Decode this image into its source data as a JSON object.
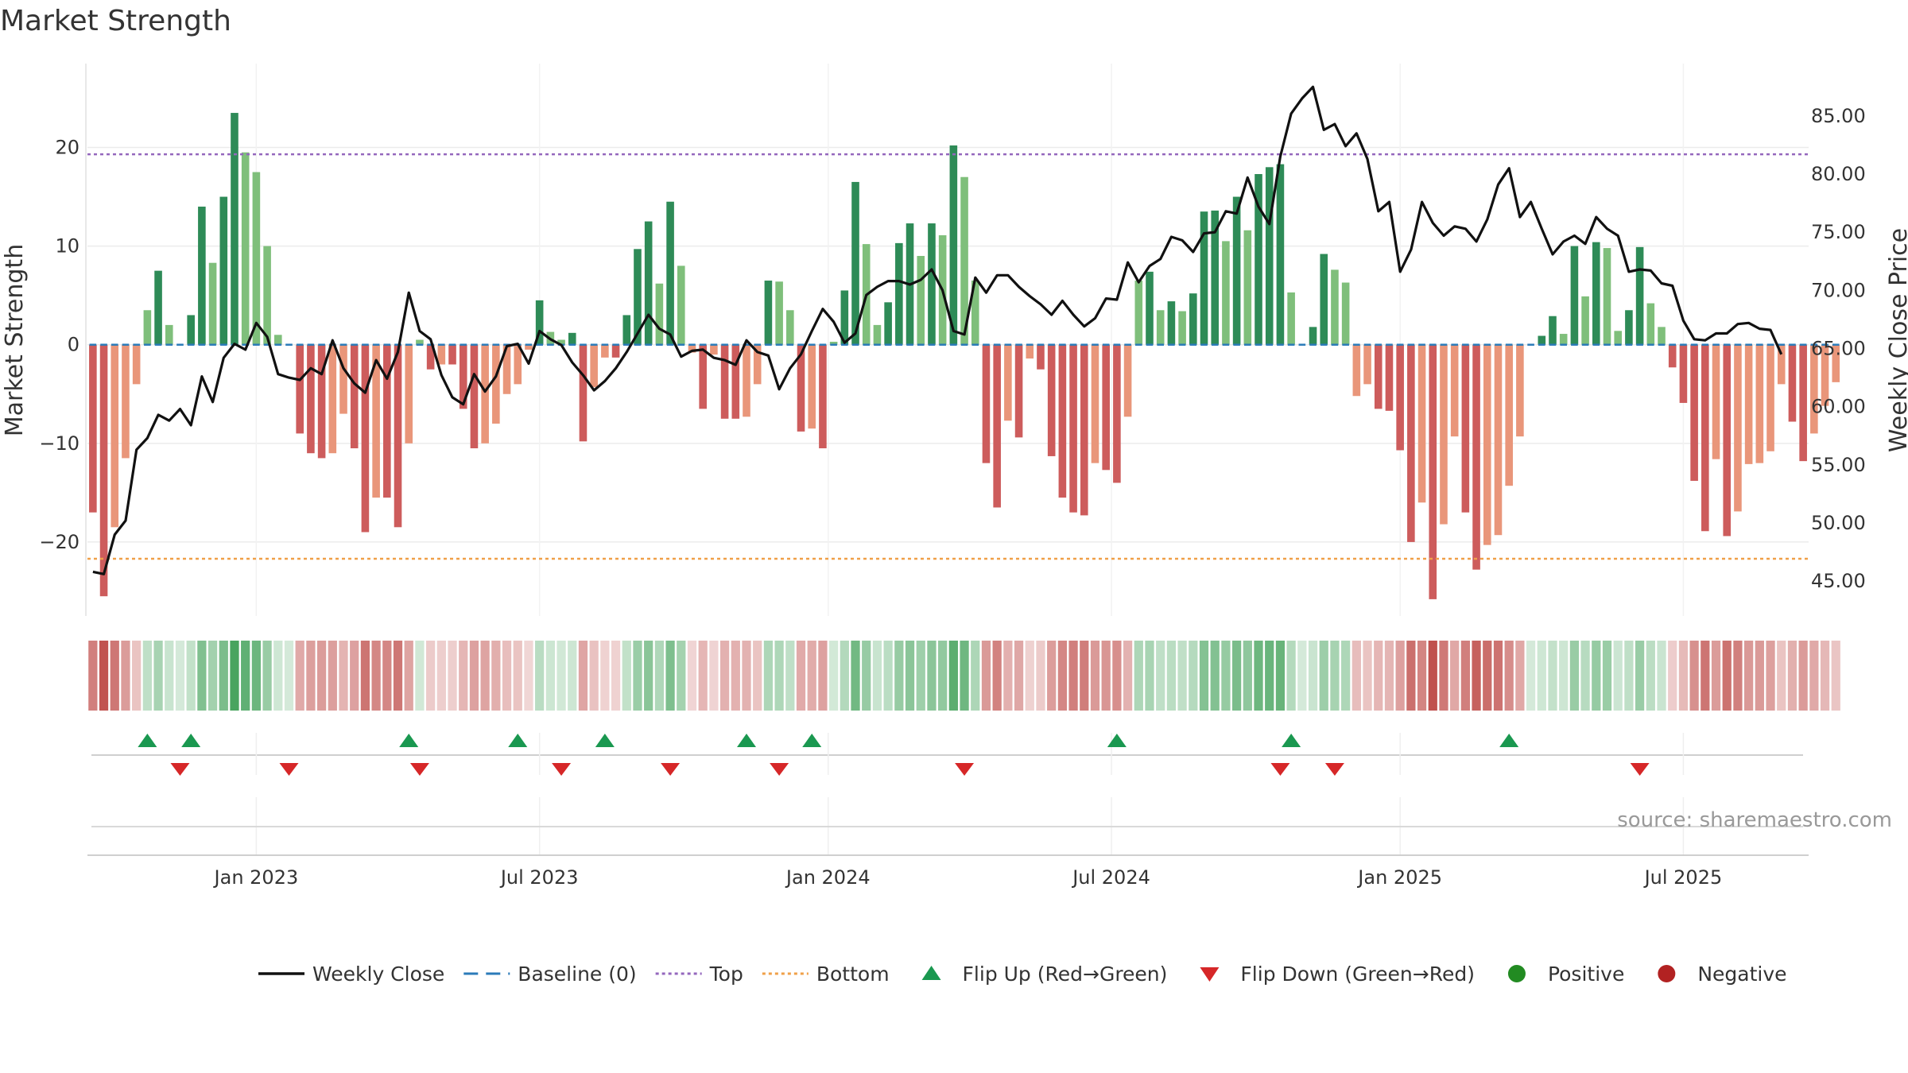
{
  "chart_data": {
    "type": "bar",
    "title": "Market Strength",
    "ylabel_left": "Market Strength",
    "ylabel_right": "Weekly Close Price",
    "y_left_ticks": [
      "20",
      "10",
      "0",
      "−10",
      "−20"
    ],
    "y_left_tick_values": [
      20,
      10,
      0,
      -10,
      -20
    ],
    "y_left_range": [
      -27.5,
      28.5
    ],
    "y_right_ticks": [
      "85.00",
      "80.00",
      "75.00",
      "70.00",
      "65.00",
      "60.00",
      "55.00",
      "50.00",
      "45.00"
    ],
    "y_right_tick_values": [
      85,
      80,
      75,
      70,
      65,
      60,
      55,
      50,
      45
    ],
    "y_right_range": [
      42.0,
      89.5
    ],
    "x_ticks": [
      "Jan 2023",
      "Jul 2023",
      "Jan 2024",
      "Jul 2024",
      "Jan 2025",
      "Jul 2025"
    ],
    "x_tick_weeks": [
      15,
      41,
      67.5,
      93.5,
      120,
      146
    ],
    "x_range": [
      -0.5,
      157.5
    ],
    "top_line": 19.3,
    "bottom_line": -21.7,
    "baseline": 0,
    "strength": [
      -17,
      -25.5,
      -18.5,
      -11.5,
      -4,
      3.5,
      7.5,
      2,
      0,
      3,
      14,
      8.3,
      15,
      23.5,
      19.5,
      17.5,
      10,
      1,
      0,
      -9,
      -11,
      -11.5,
      -11,
      -7,
      -10.5,
      -19,
      -15.5,
      -15.5,
      -18.5,
      -10,
      0.5,
      -2.5,
      -2,
      -2,
      -6.5,
      -10.5,
      -10,
      -8,
      -5,
      -4,
      -0.5,
      4.5,
      1.3,
      0.5,
      1.2,
      -9.8,
      -4.3,
      -1.3,
      -1.3,
      3,
      9.7,
      12.5,
      6.2,
      14.5,
      8,
      -0.8,
      -6.5,
      -1,
      -7.5,
      -7.5,
      -7.3,
      -4,
      6.5,
      6.4,
      3.5,
      -8.8,
      -8.5,
      -10.5,
      0.3,
      5.5,
      16.5,
      10.2,
      2,
      4.3,
      10.3,
      12.3,
      9,
      12.3,
      11.1,
      20.2,
      17,
      6.5,
      -12,
      -16.5,
      -7.7,
      -9.4,
      -1.4,
      -2.5,
      -11.3,
      -15.5,
      -17,
      -17.3,
      -12,
      -12.7,
      -14,
      -7.3,
      6.5,
      7.4,
      3.5,
      4.4,
      3.4,
      5.2,
      13.5,
      13.6,
      10.5,
      15,
      11.6,
      17.3,
      18,
      18.3,
      5.3,
      0,
      1.8,
      9.2,
      7.6,
      6.3,
      -5.2,
      -4,
      -6.5,
      -6.7,
      -10.7,
      -20,
      -16,
      -25.8,
      -18.2,
      -9.3,
      -17,
      -22.8,
      -20.3,
      -19.3,
      -14.3,
      -9.3,
      0,
      0.9,
      2.9,
      1.1,
      10,
      4.9,
      10.4,
      9.8,
      1.4,
      3.5,
      9.9,
      4.2,
      1.8,
      -2.3,
      -5.9,
      -13.8,
      -18.9,
      -11.6,
      -19.4,
      -16.9,
      -12.1,
      -12,
      -10.8,
      -4,
      -7.8,
      -11.8,
      -9,
      -6.2,
      -3.8
    ],
    "weekly_close": [
      45.8,
      45.6,
      49,
      50.2,
      56.3,
      57.3,
      59.3,
      58.8,
      59.8,
      58.4,
      62.6,
      60.4,
      64.2,
      65.4,
      64.9,
      67.2,
      66,
      62.8,
      62.5,
      62.3,
      63.3,
      62.8,
      65.7,
      63.3,
      62,
      61.2,
      64,
      62.4,
      64.7,
      69.8,
      66.5,
      65.8,
      62.7,
      60.8,
      60.2,
      62.8,
      61.3,
      62.6,
      65.2,
      65.4,
      63.7,
      66.5,
      65.8,
      65.3,
      63.8,
      62.7,
      61.4,
      62.2,
      63.3,
      64.7,
      66.3,
      67.9,
      66.7,
      66.2,
      64.3,
      64.8,
      64.9,
      64.2,
      64,
      63.6,
      65.7,
      64.7,
      64.4,
      61.5,
      63.3,
      64.5,
      66.5,
      68.4,
      67.3,
      65.5,
      66.3,
      69.6,
      70.3,
      70.8,
      70.8,
      70.5,
      70.9,
      71.8,
      70,
      66.5,
      66.2,
      71.1,
      69.8,
      71.3,
      71.3,
      70.3,
      69.5,
      68.8,
      67.9,
      69.1,
      67.9,
      66.9,
      67.6,
      69.3,
      69.2,
      72.4,
      70.7,
      72.1,
      72.7,
      74.6,
      74.3,
      73.3,
      74.9,
      75,
      76.8,
      76.6,
      79.7,
      77.2,
      75.7,
      81.5,
      85.2,
      86.5,
      87.5,
      83.8,
      84.3,
      82.4,
      83.5,
      81.3,
      76.8,
      77.6,
      71.6,
      73.5,
      77.6,
      75.8,
      74.7,
      75.5,
      75.3,
      74.2,
      76.1,
      79.1,
      80.5,
      76.3,
      77.6,
      75.3,
      73.1,
      74.2,
      74.7,
      74,
      76.3,
      75.3,
      74.7,
      71.6,
      71.8,
      71.7,
      70.6,
      70.4,
      67.4,
      65.8,
      65.7,
      66.3,
      66.3,
      67.1,
      67.2,
      66.7,
      66.6,
      64.5
    ],
    "flip_up_weeks": [
      5,
      9,
      29,
      39,
      47,
      60,
      66,
      94,
      110,
      130
    ],
    "flip_down_weeks": [
      8,
      18,
      30,
      43,
      53,
      63,
      80,
      109,
      114,
      142
    ],
    "legend": [
      {
        "label": "Weekly Close",
        "kind": "line",
        "color": "#111111"
      },
      {
        "label": "Baseline (0)",
        "kind": "dash",
        "color": "#2b7bb9"
      },
      {
        "label": "Top",
        "kind": "dot",
        "color": "#9467bd"
      },
      {
        "label": "Bottom",
        "kind": "dot",
        "color": "#f0a048"
      },
      {
        "label": "Flip Up (Red→Green)",
        "kind": "tri-up",
        "color": "#1a9850"
      },
      {
        "label": "Flip Down (Green→Red)",
        "kind": "tri-down",
        "color": "#d62728"
      },
      {
        "label": "Positive",
        "kind": "circle",
        "color": "#228b22"
      },
      {
        "label": "Negative",
        "kind": "circle",
        "color": "#b22222"
      }
    ],
    "colors": {
      "pos_strong": "#2e8b57",
      "pos_light": "#7fbf7b",
      "neg_strong": "#cd5c5c",
      "neg_light": "#e9967a",
      "baseline": "#2b7bb9",
      "top": "#9467bd",
      "bottom": "#f0a048",
      "close": "#111111",
      "flip_up": "#1a9850",
      "flip_down": "#d62728"
    }
  },
  "source": "source: sharemaestro.com"
}
